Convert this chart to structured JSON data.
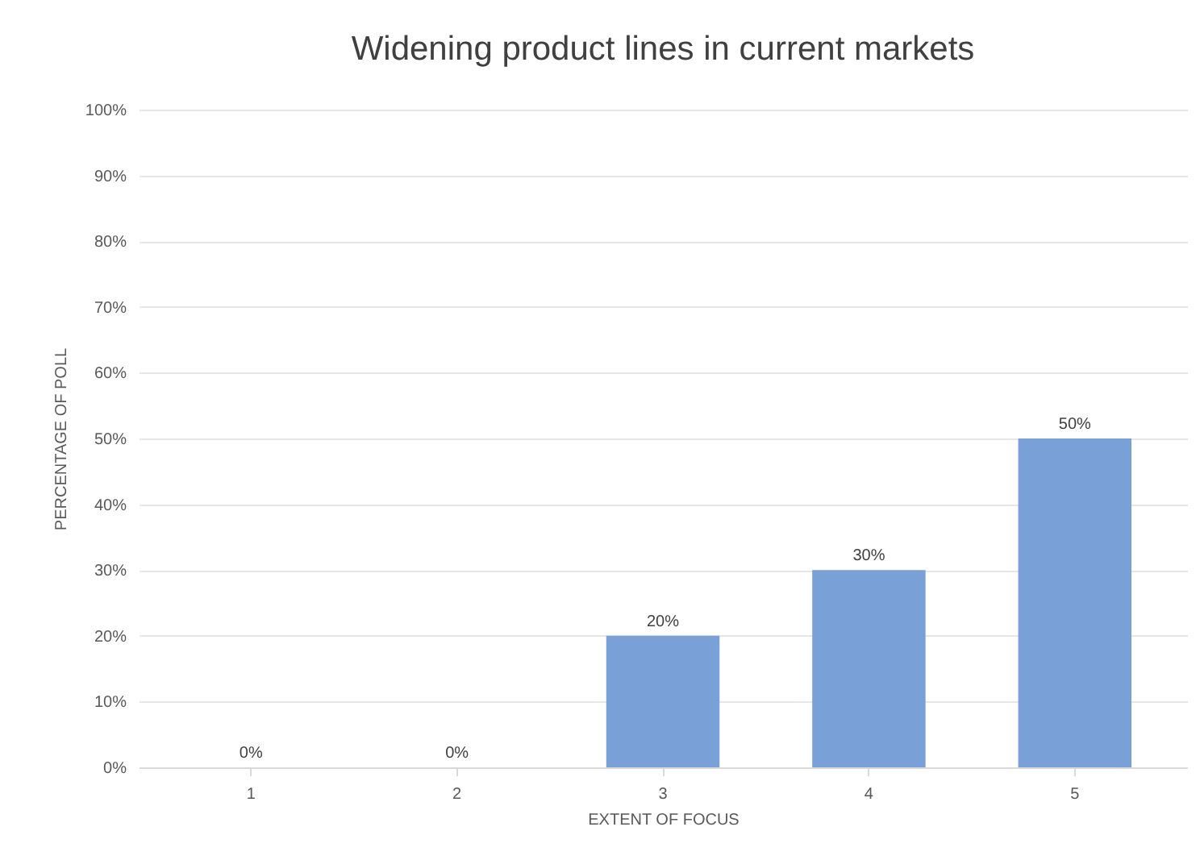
{
  "chart_data": {
    "type": "bar",
    "title": "Widening product lines in current markets",
    "xlabel": "EXTENT OF FOCUS",
    "ylabel": "PERCENTAGE OF POLL",
    "categories": [
      "1",
      "2",
      "3",
      "4",
      "5"
    ],
    "values": [
      0,
      0,
      20,
      30,
      50
    ],
    "value_labels": [
      "0%",
      "0%",
      "20%",
      "30%",
      "50%"
    ],
    "color": "#7aa0d8",
    "ylim": [
      0,
      100
    ],
    "yticks": [
      {
        "value": 0,
        "label": "0%"
      },
      {
        "value": 10,
        "label": "10%"
      },
      {
        "value": 20,
        "label": "20%"
      },
      {
        "value": 30,
        "label": "30%"
      },
      {
        "value": 40,
        "label": "40%"
      },
      {
        "value": 50,
        "label": "50%"
      },
      {
        "value": 60,
        "label": "60%"
      },
      {
        "value": 70,
        "label": "70%"
      },
      {
        "value": 80,
        "label": "80%"
      },
      {
        "value": 90,
        "label": "90%"
      },
      {
        "value": 100,
        "label": "100%"
      }
    ],
    "grid": "y"
  }
}
